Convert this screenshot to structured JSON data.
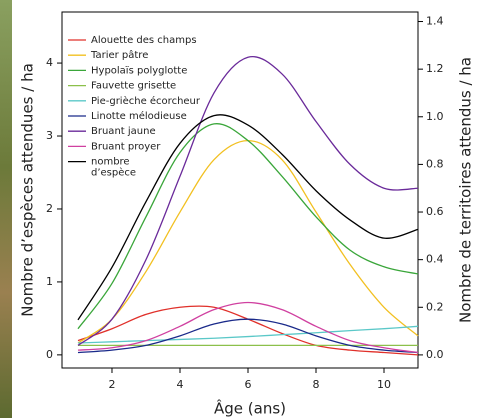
{
  "chart_data": {
    "type": "line",
    "x_label": "Âge (ans)",
    "y_label": "Nombre d’espèces attendues / ha",
    "y2_label": "Nombre de territoires attendus / ha",
    "x": [
      1,
      2,
      3,
      4,
      5,
      6,
      7,
      8,
      9,
      10,
      11
    ],
    "xlim": [
      0.53,
      11.0
    ],
    "xticks": [
      2,
      4,
      6,
      8,
      10
    ],
    "ylim": [
      -0.18,
      4.7
    ],
    "yticks": [
      0,
      1,
      2,
      3,
      4
    ],
    "y2lim": [
      -0.055,
      1.44
    ],
    "y2ticks": [
      {
        "value": 0,
        "label": "0.0"
      },
      0.2,
      0.4,
      0.6,
      0.8,
      {
        "value": 1,
        "label": "1.0"
      },
      1.2,
      1.4
    ],
    "series": [
      {
        "name": "Alouette des champs",
        "color": "#e0302a",
        "axis": "y2",
        "values": [
          0.06,
          0.11,
          0.17,
          0.2,
          0.2,
          0.15,
          0.09,
          0.04,
          0.02,
          0.01,
          0.0
        ]
      },
      {
        "name": "Tarier pâtre",
        "color": "#f2c021",
        "axis": "y2",
        "values": [
          0.05,
          0.15,
          0.35,
          0.6,
          0.82,
          0.9,
          0.82,
          0.6,
          0.38,
          0.2,
          0.08
        ]
      },
      {
        "name": "Hypolaïs polyglotte",
        "color": "#3aa63a",
        "axis": "y2",
        "values": [
          0.11,
          0.3,
          0.58,
          0.85,
          0.97,
          0.9,
          0.75,
          0.58,
          0.44,
          0.37,
          0.34
        ]
      },
      {
        "name": "Fauvette grisette",
        "color": "#8cc04a",
        "axis": "y2",
        "values": [
          0.04,
          0.04,
          0.04,
          0.04,
          0.04,
          0.04,
          0.04,
          0.04,
          0.04,
          0.04,
          0.04
        ]
      },
      {
        "name": "Pie-grièche écorcheur",
        "color": "#5bc8c8",
        "axis": "y2",
        "values": [
          0.05,
          0.055,
          0.06,
          0.065,
          0.07,
          0.077,
          0.085,
          0.093,
          0.102,
          0.11,
          0.12
        ]
      },
      {
        "name": "Linotte mélodieuse",
        "color": "#1a2a8a",
        "axis": "y2",
        "values": [
          0.01,
          0.02,
          0.04,
          0.08,
          0.13,
          0.15,
          0.13,
          0.08,
          0.04,
          0.02,
          0.01
        ]
      },
      {
        "name": "Bruant jaune",
        "color": "#6a2a9a",
        "axis": "y2",
        "values": [
          0.04,
          0.15,
          0.4,
          0.75,
          1.1,
          1.25,
          1.18,
          0.98,
          0.8,
          0.7,
          0.7
        ]
      },
      {
        "name": "Bruant proyer",
        "color": "#d040a0",
        "axis": "y2",
        "values": [
          0.02,
          0.03,
          0.06,
          0.12,
          0.19,
          0.22,
          0.19,
          0.12,
          0.06,
          0.03,
          0.01
        ]
      },
      {
        "name": "nombre d’espèce",
        "color": "#000000",
        "axis": "y",
        "values": [
          0.48,
          1.2,
          2.1,
          2.9,
          3.28,
          3.15,
          2.75,
          2.25,
          1.85,
          1.6,
          1.72
        ]
      }
    ]
  }
}
